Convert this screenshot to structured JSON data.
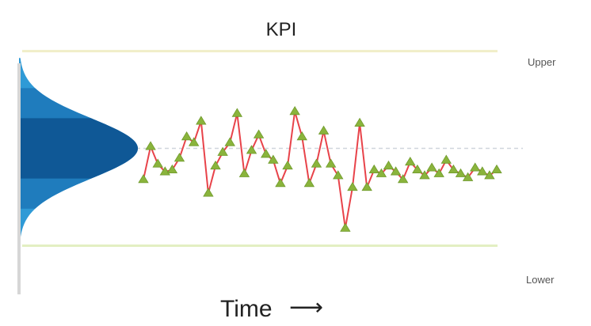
{
  "chart_data": {
    "type": "line",
    "title": "KPI",
    "xlabel": "Time",
    "ylabel": "",
    "x_arrow": "⟶",
    "ylim": [
      -7.5,
      6.0
    ],
    "limits": {
      "upper": {
        "label": "Upper",
        "value": 5.0,
        "color": "#f1eec8"
      },
      "lower": {
        "label": "Lower",
        "value": -5.0,
        "color": "#e3efc2"
      }
    },
    "center_value": 0.0,
    "series": [
      {
        "x": [
          1,
          2,
          3,
          4,
          5,
          6,
          7,
          8,
          9,
          10,
          11,
          12,
          13,
          14,
          15,
          16,
          17,
          18,
          19,
          20,
          21,
          22,
          23,
          24,
          25,
          26,
          27,
          28,
          29,
          30,
          31,
          32,
          33,
          34,
          35,
          36,
          37,
          38,
          39,
          40,
          41,
          42,
          43,
          44,
          45,
          46,
          47,
          48,
          49,
          50
        ],
        "values": [
          -1.6,
          0.1,
          -0.8,
          -1.2,
          -1.1,
          -0.5,
          0.6,
          0.3,
          1.4,
          -2.3,
          -0.9,
          -0.2,
          0.3,
          1.8,
          -1.3,
          -0.1,
          0.7,
          -0.3,
          -0.6,
          -1.8,
          -0.9,
          1.9,
          0.6,
          -1.8,
          -0.8,
          0.9,
          -0.8,
          -1.4,
          -4.1,
          -2.0,
          1.3,
          -2.0,
          -1.1,
          -1.3,
          -0.9,
          -1.2,
          -1.6,
          -0.7,
          -1.1,
          -1.4,
          -1.0,
          -1.3,
          -0.6,
          -1.1,
          -1.3,
          -1.5,
          -1.0,
          -1.2,
          -1.4,
          -1.1
        ],
        "color": "#e8434a",
        "marker_color": "#8ab43c"
      }
    ],
    "distribution": {
      "mean": 0.0,
      "sd": 1.55,
      "bands": [
        {
          "k": 3,
          "color": "#2f9ad6"
        },
        {
          "k": 2,
          "color": "#1f7cbd"
        },
        {
          "k": 1,
          "color": "#0f5896"
        }
      ]
    },
    "grid": false,
    "legend": "none"
  }
}
